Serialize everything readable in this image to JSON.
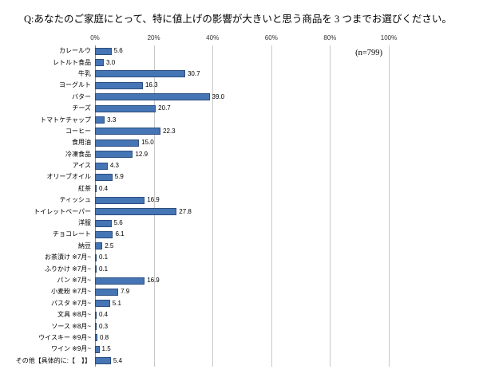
{
  "title": "Q:あなたのご家庭にとって、特に値上げの影響が大きいと思う商品を 3 つまでお選びください。",
  "sample_note": "(n=799)",
  "colors": {
    "bar_fill": "#4575b4",
    "bar_border": "#2c4d7f",
    "gridline": "#c8c8c8"
  },
  "chart_data": {
    "type": "bar",
    "orientation": "horizontal",
    "title": "Q:あなたのご家庭にとって、特に値上げの影響が大きいと思う商品を 3 つまでお選びください。",
    "annotation": "(n=799)",
    "categories": [
      "カレールウ",
      "レトルト食品",
      "牛乳",
      "ヨーグルト",
      "バター",
      "チーズ",
      "トマトケチャップ",
      "コーヒー",
      "食用油",
      "冷凍食品",
      "アイス",
      "オリーブオイル",
      "紅茶",
      "ティッシュ",
      "トイレットペーパー",
      "洋服",
      "チョコレート",
      "納豆",
      "お茶漬け ※7月~",
      "ふりかけ ※7月~",
      "パン ※7月~",
      "小麦粉 ※7月~",
      "パスタ ※7月~",
      "文具 ※8月~",
      "ソース ※8月~",
      "ウイスキー ※9月~",
      "ワイン ※9月~",
      "その他【具体的に:【　】】"
    ],
    "values": [
      5.6,
      3.0,
      30.7,
      16.3,
      39.0,
      20.7,
      3.3,
      22.3,
      15.0,
      12.9,
      4.3,
      5.9,
      0.4,
      16.9,
      27.8,
      5.6,
      6.1,
      2.5,
      0.1,
      0.1,
      16.9,
      7.9,
      5.1,
      0.4,
      0.3,
      0.8,
      1.5,
      5.4
    ],
    "xlabel": "",
    "ylabel": "",
    "xlim": [
      0,
      100
    ],
    "x_ticks": [
      0,
      20,
      40,
      60,
      80,
      100
    ],
    "x_tick_labels": [
      "0%",
      "20%",
      "40%",
      "60%",
      "80%",
      "100%"
    ],
    "grid": true,
    "legend": false
  }
}
